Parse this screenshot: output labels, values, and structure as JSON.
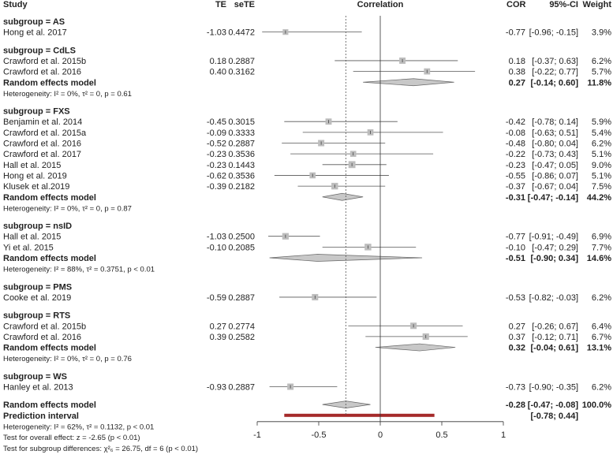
{
  "chart_data": {
    "type": "forest",
    "title": "",
    "xlabel": "Correlation",
    "xlim": [
      -1,
      1
    ],
    "xticks": [
      "-1",
      "-0.5",
      "0",
      "0.5",
      "1"
    ],
    "xtick_values": [
      -1,
      -0.5,
      0,
      0.5,
      1
    ],
    "overall_effect": -0.28,
    "headers": {
      "study": "Study",
      "te": "TE",
      "sete": "seTE",
      "plot": "Correlation",
      "cor": "COR",
      "ci": "95%-CI",
      "weight": "Weight"
    },
    "colors": {
      "square": "#bdbdbd",
      "diamond": "#c8c8c8",
      "prediction": "#a52a2a",
      "line": "#555555"
    },
    "rows": [
      {
        "type": "subgroup",
        "label": "subgroup = AS"
      },
      {
        "type": "study",
        "label": "Hong et al. 2017",
        "te": "-1.03",
        "sete": "0.4472",
        "cor": -0.77,
        "lo": -0.96,
        "hi": -0.15,
        "cor_text": "-0.77",
        "ci_text": "[-0.96; -0.15]",
        "weight": "3.9%",
        "w": 3.9
      },
      {
        "type": "blank"
      },
      {
        "type": "subgroup",
        "label": "subgroup = CdLS"
      },
      {
        "type": "study",
        "label": "Crawford et al. 2015b",
        "te": "0.18",
        "sete": "0.2887",
        "cor": 0.18,
        "lo": -0.37,
        "hi": 0.63,
        "cor_text": "0.18",
        "ci_text": "[-0.37;  0.63]",
        "weight": "6.2%",
        "w": 6.2
      },
      {
        "type": "study",
        "label": "Crawford et al. 2016",
        "te": "0.40",
        "sete": "0.3162",
        "cor": 0.38,
        "lo": -0.22,
        "hi": 0.77,
        "cor_text": "0.38",
        "ci_text": "[-0.22;  0.77]",
        "weight": "5.7%",
        "w": 5.7
      },
      {
        "type": "model",
        "label": "Random effects model",
        "cor": 0.27,
        "lo": -0.14,
        "hi": 0.6,
        "cor_text": "0.27",
        "ci_text": "[-0.14;  0.60]",
        "weight": "11.8%"
      },
      {
        "type": "het",
        "label": "Heterogeneity: I² = 0%, τ² = 0, p = 0.61"
      },
      {
        "type": "blank"
      },
      {
        "type": "subgroup",
        "label": "subgroup = FXS"
      },
      {
        "type": "study",
        "label": "Benjamin et al. 2014",
        "te": "-0.45",
        "sete": "0.3015",
        "cor": -0.42,
        "lo": -0.78,
        "hi": 0.14,
        "cor_text": "-0.42",
        "ci_text": "[-0.78;  0.14]",
        "weight": "5.9%",
        "w": 5.9
      },
      {
        "type": "study",
        "label": "Crawford et al. 2015a",
        "te": "-0.09",
        "sete": "0.3333",
        "cor": -0.08,
        "lo": -0.63,
        "hi": 0.51,
        "cor_text": "-0.08",
        "ci_text": "[-0.63;  0.51]",
        "weight": "5.4%",
        "w": 5.4
      },
      {
        "type": "study",
        "label": "Crawford et al. 2016",
        "te": "-0.52",
        "sete": "0.2887",
        "cor": -0.48,
        "lo": -0.8,
        "hi": 0.04,
        "cor_text": "-0.48",
        "ci_text": "[-0.80;  0.04]",
        "weight": "6.2%",
        "w": 6.2
      },
      {
        "type": "study",
        "label": "Crawford et al. 2017",
        "te": "-0.23",
        "sete": "0.3536",
        "cor": -0.22,
        "lo": -0.73,
        "hi": 0.43,
        "cor_text": "-0.22",
        "ci_text": "[-0.73;  0.43]",
        "weight": "5.1%",
        "w": 5.1
      },
      {
        "type": "study",
        "label": "Hall et al. 2015",
        "te": "-0.23",
        "sete": "0.1443",
        "cor": -0.23,
        "lo": -0.47,
        "hi": 0.05,
        "cor_text": "-0.23",
        "ci_text": "[-0.47;  0.05]",
        "weight": "9.0%",
        "w": 9.0
      },
      {
        "type": "study",
        "label": "Hong et al. 2019",
        "te": "-0.62",
        "sete": "0.3536",
        "cor": -0.55,
        "lo": -0.86,
        "hi": 0.07,
        "cor_text": "-0.55",
        "ci_text": "[-0.86;  0.07]",
        "weight": "5.1%",
        "w": 5.1
      },
      {
        "type": "study",
        "label": "Klusek et al.2019",
        "te": "-0.39",
        "sete": "0.2182",
        "cor": -0.37,
        "lo": -0.67,
        "hi": 0.04,
        "cor_text": "-0.37",
        "ci_text": "[-0.67;  0.04]",
        "weight": "7.5%",
        "w": 7.5
      },
      {
        "type": "model",
        "label": "Random effects model",
        "cor": -0.31,
        "lo": -0.47,
        "hi": -0.14,
        "cor_text": "-0.31",
        "ci_text": "[-0.47; -0.14]",
        "weight": "44.2%"
      },
      {
        "type": "het",
        "label": "Heterogeneity: I² = 0%, τ² = 0, p = 0.87"
      },
      {
        "type": "blank"
      },
      {
        "type": "subgroup",
        "label": "subgroup = nsID"
      },
      {
        "type": "study",
        "label": "Hall et al. 2015",
        "te": "-1.03",
        "sete": "0.2500",
        "cor": -0.77,
        "lo": -0.91,
        "hi": -0.49,
        "cor_text": "-0.77",
        "ci_text": "[-0.91; -0.49]",
        "weight": "6.9%",
        "w": 6.9
      },
      {
        "type": "study",
        "label": "Yi et al. 2015",
        "te": "-0.10",
        "sete": "0.2085",
        "cor": -0.1,
        "lo": -0.47,
        "hi": 0.29,
        "cor_text": "-0.10",
        "ci_text": "[-0.47;  0.29]",
        "weight": "7.7%",
        "w": 7.7
      },
      {
        "type": "model",
        "label": "Random effects model",
        "cor": -0.51,
        "lo": -0.9,
        "hi": 0.34,
        "cor_text": "-0.51",
        "ci_text": "[-0.90;  0.34]",
        "weight": "14.6%"
      },
      {
        "type": "het",
        "label": "Heterogeneity: I² = 88%, τ² = 0.3751, p < 0.01"
      },
      {
        "type": "blank"
      },
      {
        "type": "subgroup",
        "label": "subgroup = PMS"
      },
      {
        "type": "study",
        "label": "Cooke et al. 2019",
        "te": "-0.59",
        "sete": "0.2887",
        "cor": -0.53,
        "lo": -0.82,
        "hi": -0.03,
        "cor_text": "-0.53",
        "ci_text": "[-0.82; -0.03]",
        "weight": "6.2%",
        "w": 6.2
      },
      {
        "type": "blank"
      },
      {
        "type": "subgroup",
        "label": "subgroup = RTS"
      },
      {
        "type": "study",
        "label": "Crawford et al. 2015b",
        "te": "0.27",
        "sete": "0.2774",
        "cor": 0.27,
        "lo": -0.26,
        "hi": 0.67,
        "cor_text": "0.27",
        "ci_text": "[-0.26;  0.67]",
        "weight": "6.4%",
        "w": 6.4
      },
      {
        "type": "study",
        "label": "Crawford et al. 2016",
        "te": "0.39",
        "sete": "0.2582",
        "cor": 0.37,
        "lo": -0.12,
        "hi": 0.71,
        "cor_text": "0.37",
        "ci_text": "[-0.12;  0.71]",
        "weight": "6.7%",
        "w": 6.7
      },
      {
        "type": "model",
        "label": "Random effects model",
        "cor": 0.32,
        "lo": -0.04,
        "hi": 0.61,
        "cor_text": "0.32",
        "ci_text": "[-0.04;  0.61]",
        "weight": "13.1%"
      },
      {
        "type": "het",
        "label": "Heterogeneity: I² = 0%, τ² = 0, p = 0.76"
      },
      {
        "type": "blank"
      },
      {
        "type": "subgroup",
        "label": "subgroup = WS"
      },
      {
        "type": "study",
        "label": "Hanley et al. 2013",
        "te": "-0.93",
        "sete": "0.2887",
        "cor": -0.73,
        "lo": -0.9,
        "hi": -0.35,
        "cor_text": "-0.73",
        "ci_text": "[-0.90; -0.35]",
        "weight": "6.2%",
        "w": 6.2
      },
      {
        "type": "blank"
      },
      {
        "type": "model",
        "label": "Random effects model",
        "cor": -0.28,
        "lo": -0.47,
        "hi": -0.08,
        "cor_text": "-0.28",
        "ci_text": "[-0.47; -0.08]",
        "weight": "100.0%",
        "overall": true
      },
      {
        "type": "prediction",
        "label": "Prediction interval",
        "lo": -0.78,
        "hi": 0.44,
        "ci_text": "[-0.78;  0.44]"
      },
      {
        "type": "het",
        "label": "Heterogeneity: I² = 62%, τ² = 0.1132, p < 0.01"
      },
      {
        "type": "het",
        "label": "Test for overall effect: z = -2.65 (p < 0.01)"
      },
      {
        "type": "het",
        "label": "Test for subgroup differences: χ²₆ = 26.75, df = 6 (p < 0.01)"
      }
    ]
  }
}
